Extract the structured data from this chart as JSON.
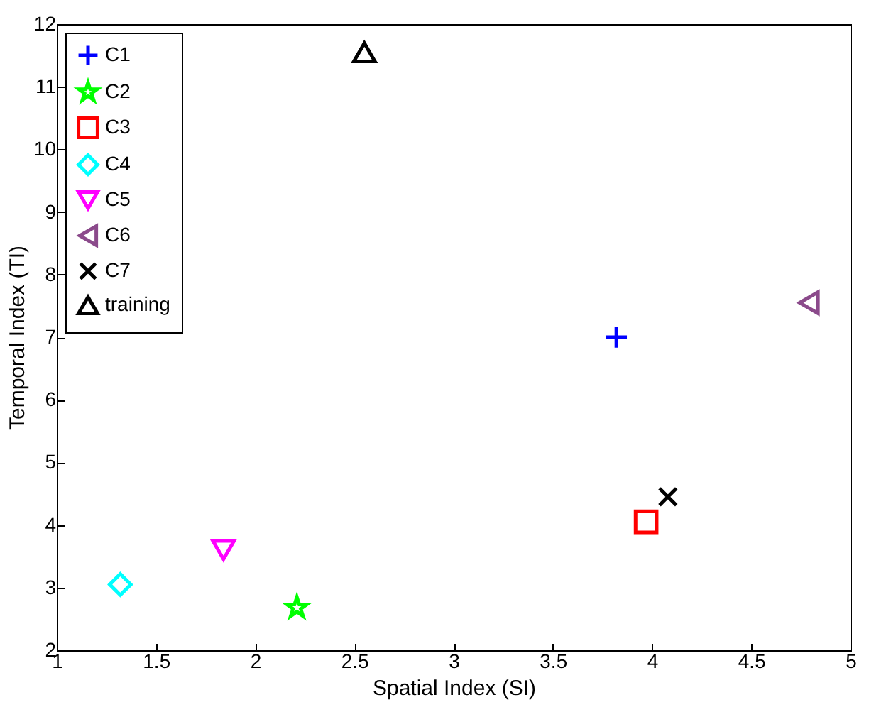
{
  "chart_data": {
    "type": "scatter",
    "xlabel": "Spatial Index (SI)",
    "ylabel": "Temporal Index (TI)",
    "xlim": [
      1,
      5
    ],
    "ylim": [
      2,
      12
    ],
    "xticks": [
      1,
      1.5,
      2,
      2.5,
      3,
      3.5,
      4,
      4.5,
      5
    ],
    "yticks": [
      2,
      3,
      4,
      5,
      6,
      7,
      8,
      9,
      10,
      11,
      12
    ],
    "grid": false,
    "legend": "top left",
    "series": [
      {
        "name": "C1",
        "color": "#0000ff",
        "marker": "plus",
        "x": [
          3.82
        ],
        "values": [
          7.0
        ]
      },
      {
        "name": "C2",
        "color": "#00ff00",
        "marker": "star",
        "x": [
          2.21
        ],
        "values": [
          2.68
        ]
      },
      {
        "name": "C3",
        "color": "#ff0000",
        "marker": "square",
        "x": [
          3.97
        ],
        "values": [
          4.05
        ]
      },
      {
        "name": "C4",
        "color": "#00ffff",
        "marker": "diamond",
        "x": [
          1.32
        ],
        "values": [
          3.05
        ]
      },
      {
        "name": "C5",
        "color": "#ff00ff",
        "marker": "triangle-down",
        "x": [
          1.84
        ],
        "values": [
          3.6
        ]
      },
      {
        "name": "C6",
        "color": "#8b4a8b",
        "marker": "triangle-left",
        "x": [
          4.79
        ],
        "values": [
          7.55
        ]
      },
      {
        "name": "C7",
        "color": "#000000",
        "marker": "x",
        "x": [
          4.08
        ],
        "values": [
          4.45
        ]
      },
      {
        "name": "training",
        "color": "#000000",
        "marker": "triangle-up",
        "x": [
          2.55
        ],
        "values": [
          11.55
        ]
      }
    ]
  }
}
